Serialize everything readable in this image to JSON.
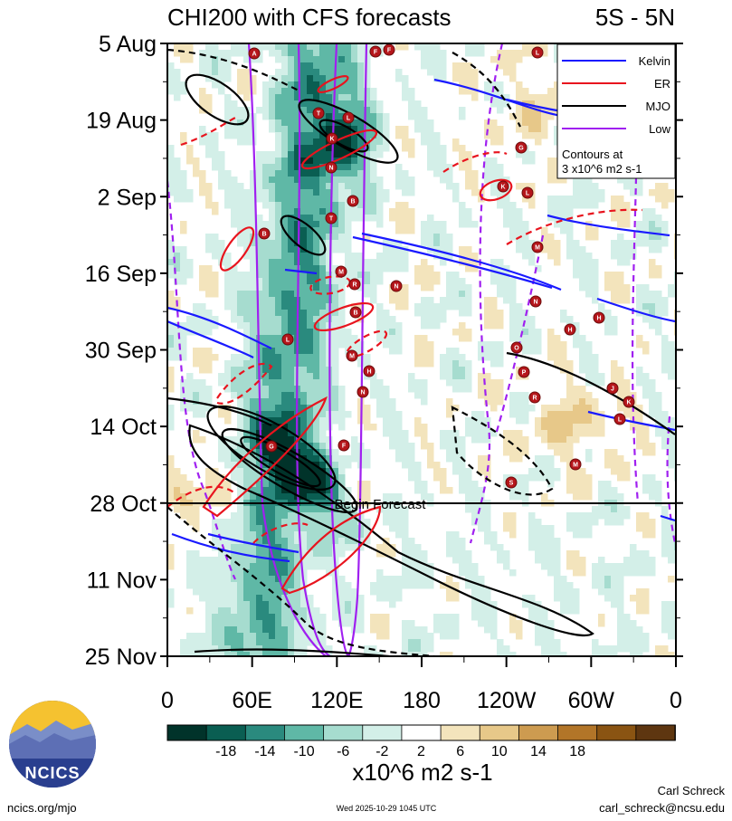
{
  "title": "CHI200 with CFS forecasts",
  "region": "5S - 5N",
  "chart_data": {
    "type": "heatmap",
    "variable": "CHI200",
    "y_ticks": [
      "5 Aug",
      "19 Aug",
      "2 Sep",
      "16 Sep",
      "30 Sep",
      "14 Oct",
      "28 Oct",
      "11 Nov",
      "25 Nov"
    ],
    "x_ticks": [
      "0",
      "60E",
      "120E",
      "180",
      "120W",
      "60W",
      "0"
    ],
    "xlim": [
      0,
      360
    ],
    "legend": {
      "placement": "top-right",
      "entries": [
        {
          "name": "Kelvin",
          "color": "#1a1aff"
        },
        {
          "name": "ER",
          "color": "#e8141e"
        },
        {
          "name": "MJO",
          "color": "#000000"
        },
        {
          "name": "Low",
          "color": "#a020f0"
        }
      ],
      "note_line1": "Contours at",
      "note_line2": "3 x10^6 m2 s-1"
    },
    "forecast_label": "Begin Forecast",
    "colorbar": {
      "levels": [
        "-18",
        "-14",
        "-10",
        "-6",
        "-2",
        "2",
        "6",
        "10",
        "14",
        "18"
      ],
      "colors": [
        "#01332a",
        "#0a5e52",
        "#2a8a7e",
        "#5fb8a6",
        "#a6dccf",
        "#d3efe8",
        "#ffffff",
        "#f3e4bc",
        "#e7c889",
        "#cd9b50",
        "#b27528",
        "#8a5412",
        "#5e3610"
      ],
      "units": "x10^6 m2 s-1"
    },
    "storm_labels": [
      "A",
      "F",
      "F",
      "L",
      "T",
      "L",
      "K",
      "N",
      "G",
      "B",
      "K",
      "L",
      "T",
      "M",
      "B",
      "M",
      "R",
      "N",
      "N",
      "B",
      "H",
      "M",
      "H",
      "H",
      "N",
      "O",
      "P",
      "R",
      "G",
      "M",
      "S",
      "L",
      "J",
      "K",
      "L",
      "F"
    ]
  },
  "logo": {
    "text": "NCICS"
  },
  "footer": {
    "url": "ncics.org/mjo",
    "timestamp": "Wed 2025-10-29 1045 UTC",
    "author": "Carl Schreck",
    "email": "carl_schreck@ncsu.edu"
  }
}
